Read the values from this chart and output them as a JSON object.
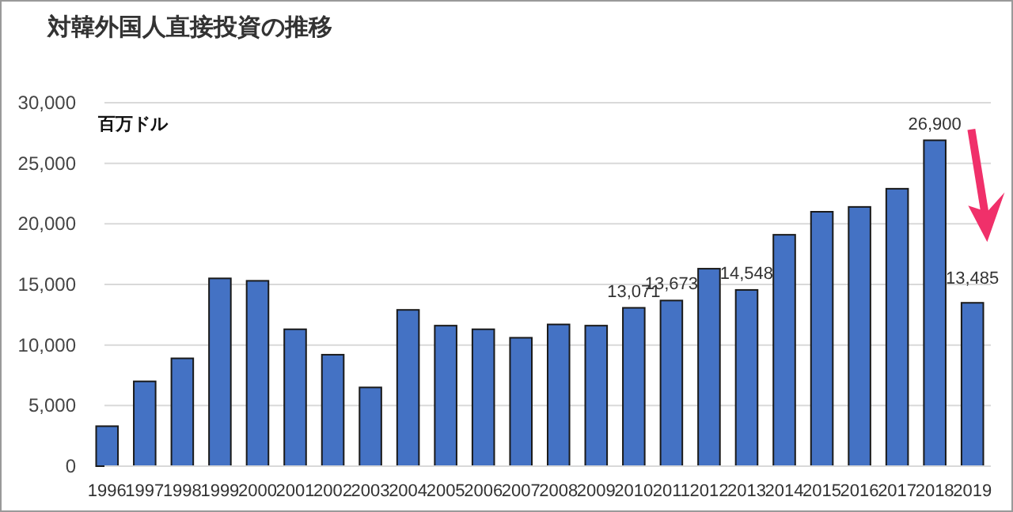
{
  "chart_data": {
    "type": "bar",
    "title": "対韓外国人直接投資の推移",
    "ylabel": "百万ドル",
    "categories": [
      "1996",
      "1997",
      "1998",
      "1999",
      "2000",
      "2001",
      "2002",
      "2003",
      "2004",
      "2005",
      "2006",
      "2007",
      "2008",
      "2009",
      "2010",
      "2011",
      "2012",
      "2013",
      "2014",
      "2015",
      "2016",
      "2017",
      "2018",
      "2019"
    ],
    "values": [
      3300,
      7000,
      8900,
      15500,
      15300,
      11300,
      9200,
      6500,
      12900,
      11600,
      11300,
      10600,
      11700,
      11600,
      13071,
      13673,
      16300,
      14548,
      19100,
      21000,
      21400,
      22900,
      26900,
      13485
    ],
    "value_labels": [
      null,
      null,
      null,
      null,
      null,
      null,
      null,
      null,
      null,
      null,
      null,
      null,
      null,
      null,
      "13,071",
      "13,673",
      null,
      "14,548",
      null,
      null,
      null,
      null,
      "26,900",
      "13,485"
    ],
    "color": "#4472c4",
    "ylim": [
      0,
      30000
    ],
    "yticks": [
      {
        "value": 0,
        "label": "0"
      },
      {
        "value": 5000,
        "label": "5,000"
      },
      {
        "value": 10000,
        "label": "10,000"
      },
      {
        "value": 15000,
        "label": "15,000"
      },
      {
        "value": 20000,
        "label": "20,000"
      },
      {
        "value": 25000,
        "label": "25,000"
      },
      {
        "value": 30000,
        "label": "30,000"
      }
    ],
    "grid": "y"
  }
}
